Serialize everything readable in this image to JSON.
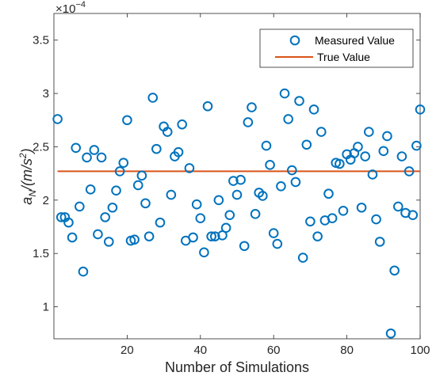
{
  "chart_data": {
    "type": "scatter",
    "xlabel": "Number of Simulations",
    "ylabel_main": "a",
    "ylabel_sub": "N",
    "ylabel_unit": "/(m/s",
    "ylabel_unit_sup": "2",
    "ylabel_unit_close": ")",
    "y_exponent_prefix": "×10",
    "y_exponent_power": "−4",
    "xlim": [
      0,
      100
    ],
    "ylim": [
      0.7,
      3.75
    ],
    "xticks": [
      20,
      40,
      60,
      80,
      100
    ],
    "yticks": [
      1,
      1.5,
      2,
      2.5,
      3,
      3.5
    ],
    "ytick_labels": [
      "1",
      "1.5",
      "2",
      "2.5",
      "3",
      "3.5"
    ],
    "grid": false,
    "legend_position": "top-right",
    "series": [
      {
        "name": "Measured Value",
        "marker": "circle-open",
        "color": "#0072BD",
        "x": [
          1,
          2,
          3,
          4,
          5,
          6,
          7,
          8,
          9,
          10,
          11,
          12,
          13,
          14,
          15,
          16,
          17,
          18,
          19,
          20,
          21,
          22,
          23,
          24,
          25,
          26,
          27,
          28,
          29,
          30,
          31,
          32,
          33,
          34,
          35,
          36,
          37,
          38,
          39,
          40,
          41,
          42,
          43,
          44,
          45,
          46,
          47,
          48,
          49,
          50,
          51,
          52,
          53,
          54,
          55,
          56,
          57,
          58,
          59,
          60,
          61,
          62,
          63,
          64,
          65,
          66,
          67,
          68,
          69,
          70,
          71,
          72,
          73,
          74,
          75,
          76,
          77,
          78,
          79,
          80,
          81,
          82,
          83,
          84,
          85,
          86,
          87,
          88,
          89,
          90,
          91,
          92,
          93,
          94,
          95,
          96,
          97,
          98,
          99,
          100
        ],
        "y": [
          2.76,
          1.84,
          1.84,
          1.79,
          1.65,
          2.49,
          1.94,
          1.33,
          2.4,
          2.1,
          2.47,
          1.68,
          2.4,
          1.84,
          1.61,
          1.93,
          2.09,
          2.27,
          2.35,
          2.75,
          1.62,
          1.63,
          2.14,
          2.23,
          1.97,
          1.66,
          2.96,
          2.48,
          1.79,
          2.69,
          2.64,
          2.05,
          2.41,
          2.45,
          2.71,
          1.62,
          2.3,
          1.65,
          1.96,
          1.83,
          1.51,
          2.88,
          1.66,
          1.66,
          2.0,
          1.67,
          1.74,
          1.86,
          2.18,
          2.05,
          2.19,
          1.57,
          2.73,
          2.87,
          1.87,
          2.07,
          2.04,
          2.51,
          2.33,
          1.69,
          1.59,
          2.13,
          3.0,
          2.76,
          2.28,
          2.17,
          2.93,
          1.46,
          2.52,
          1.8,
          2.85,
          1.66,
          2.64,
          1.81,
          2.06,
          1.83,
          2.35,
          2.34,
          1.9,
          2.43,
          2.38,
          2.44,
          2.5,
          1.93,
          2.41,
          2.64,
          2.24,
          1.82,
          1.61,
          2.46,
          2.6,
          0.75,
          1.34,
          1.94,
          2.41,
          1.88,
          2.27,
          1.86,
          2.51,
          2.85
        ]
      },
      {
        "name": "True Value",
        "marker": "line",
        "color": "#D95319",
        "x": [
          1,
          100
        ],
        "y": [
          2.27,
          2.27
        ]
      }
    ]
  }
}
